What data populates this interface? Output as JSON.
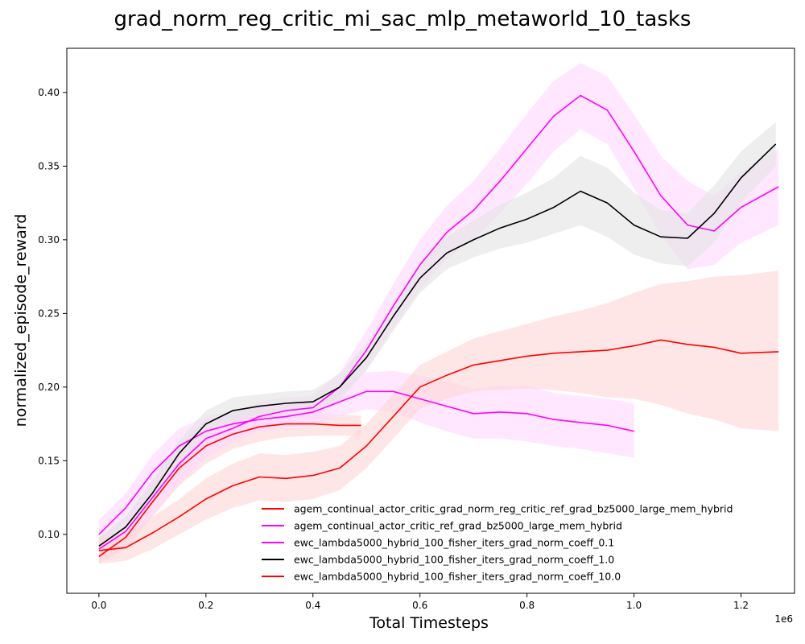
{
  "chart_data": {
    "type": "line",
    "title": "grad_norm_reg_critic_mi_sac_mlp_metaworld_10_tasks",
    "xlabel": "Total Timesteps",
    "ylabel": "normalized_episode_reward",
    "x_offset_label": "1e6",
    "xlim": [
      -0.06,
      1.3
    ],
    "ylim": [
      0.06,
      0.43
    ],
    "x_ticks": [
      0.0,
      0.2,
      0.4,
      0.6,
      0.8,
      1.0,
      1.2
    ],
    "x_tick_labels": [
      "0.0",
      "0.2",
      "0.4",
      "0.6",
      "0.8",
      "1.0",
      "1.2"
    ],
    "y_ticks": [
      0.1,
      0.15,
      0.2,
      0.25,
      0.3,
      0.35,
      0.4
    ],
    "y_tick_labels": [
      "0.10",
      "0.15",
      "0.20",
      "0.25",
      "0.30",
      "0.35",
      "0.40"
    ],
    "grid": false,
    "legend_position": "lower-right",
    "series": [
      {
        "name": "agem_continual_actor_critic_grad_norm_reg_critic_ref_grad_bz5000_large_mem_hybrid",
        "color": "#ff0000",
        "band_color": "#ffd6d6",
        "x": [
          0.0,
          0.05,
          0.1,
          0.15,
          0.2,
          0.25,
          0.3,
          0.35,
          0.4,
          0.45,
          0.49
        ],
        "y": [
          0.085,
          0.098,
          0.122,
          0.145,
          0.16,
          0.168,
          0.173,
          0.175,
          0.175,
          0.174,
          0.174
        ],
        "lower": [
          0.08,
          0.09,
          0.112,
          0.133,
          0.148,
          0.158,
          0.163,
          0.166,
          0.167,
          0.167,
          0.167
        ],
        "upper": [
          0.09,
          0.106,
          0.132,
          0.157,
          0.172,
          0.178,
          0.183,
          0.184,
          0.183,
          0.181,
          0.181
        ]
      },
      {
        "name": "agem_continual_actor_critic_ref_grad_bz5000_large_mem_hybrid",
        "color": "#ff00ff",
        "band_color": "#ffd9ff",
        "x": [
          0.0,
          0.05,
          0.1,
          0.15,
          0.2,
          0.25,
          0.3,
          0.35,
          0.4,
          0.45,
          0.5,
          0.55,
          0.6,
          0.65,
          0.7,
          0.75,
          0.8,
          0.85,
          0.9,
          0.95,
          1.0
        ],
        "y": [
          0.1,
          0.118,
          0.142,
          0.16,
          0.17,
          0.175,
          0.178,
          0.18,
          0.183,
          0.19,
          0.197,
          0.197,
          0.192,
          0.187,
          0.182,
          0.183,
          0.182,
          0.178,
          0.176,
          0.174,
          0.17
        ],
        "lower": [
          0.092,
          0.108,
          0.13,
          0.148,
          0.16,
          0.166,
          0.17,
          0.172,
          0.175,
          0.18,
          0.185,
          0.183,
          0.176,
          0.17,
          0.165,
          0.165,
          0.163,
          0.16,
          0.158,
          0.155,
          0.152
        ],
        "upper": [
          0.11,
          0.128,
          0.154,
          0.172,
          0.18,
          0.184,
          0.186,
          0.188,
          0.191,
          0.2,
          0.21,
          0.211,
          0.208,
          0.204,
          0.199,
          0.201,
          0.201,
          0.196,
          0.194,
          0.192,
          0.189
        ]
      },
      {
        "name": "ewc_lambda5000_hybrid_100_fisher_iters_grad_norm_coeff_0.1",
        "color": "#ff00ff",
        "band_color": "#ffd9ff",
        "x": [
          0.0,
          0.05,
          0.1,
          0.15,
          0.2,
          0.25,
          0.3,
          0.35,
          0.4,
          0.45,
          0.5,
          0.55,
          0.6,
          0.65,
          0.7,
          0.75,
          0.8,
          0.85,
          0.9,
          0.95,
          1.0,
          1.05,
          1.1,
          1.15,
          1.2,
          1.27
        ],
        "y": [
          0.09,
          0.102,
          0.125,
          0.148,
          0.165,
          0.172,
          0.18,
          0.184,
          0.186,
          0.2,
          0.225,
          0.255,
          0.283,
          0.305,
          0.32,
          0.34,
          0.362,
          0.384,
          0.398,
          0.388,
          0.36,
          0.33,
          0.31,
          0.306,
          0.322,
          0.336
        ],
        "lower": [
          0.082,
          0.092,
          0.112,
          0.134,
          0.152,
          0.162,
          0.17,
          0.175,
          0.178,
          0.19,
          0.212,
          0.24,
          0.266,
          0.287,
          0.3,
          0.318,
          0.338,
          0.36,
          0.375,
          0.365,
          0.335,
          0.303,
          0.28,
          0.283,
          0.298,
          0.31
        ],
        "upper": [
          0.098,
          0.112,
          0.138,
          0.162,
          0.178,
          0.182,
          0.19,
          0.193,
          0.194,
          0.21,
          0.238,
          0.27,
          0.3,
          0.323,
          0.34,
          0.362,
          0.386,
          0.408,
          0.42,
          0.411,
          0.385,
          0.357,
          0.34,
          0.33,
          0.346,
          0.362
        ]
      },
      {
        "name": "ewc_lambda5000_hybrid_100_fisher_iters_grad_norm_coeff_1.0",
        "color": "#000000",
        "band_color": "#e2e2e2",
        "x": [
          0.0,
          0.05,
          0.1,
          0.15,
          0.2,
          0.25,
          0.3,
          0.35,
          0.4,
          0.45,
          0.5,
          0.55,
          0.6,
          0.65,
          0.7,
          0.75,
          0.8,
          0.85,
          0.9,
          0.95,
          1.0,
          1.05,
          1.1,
          1.15,
          1.2,
          1.265
        ],
        "y": [
          0.092,
          0.105,
          0.128,
          0.155,
          0.175,
          0.184,
          0.187,
          0.189,
          0.19,
          0.2,
          0.22,
          0.248,
          0.274,
          0.291,
          0.3,
          0.308,
          0.314,
          0.322,
          0.333,
          0.325,
          0.31,
          0.302,
          0.301,
          0.318,
          0.342,
          0.365
        ],
        "lower": [
          0.086,
          0.098,
          0.12,
          0.146,
          0.166,
          0.176,
          0.18,
          0.182,
          0.183,
          0.192,
          0.211,
          0.238,
          0.264,
          0.28,
          0.288,
          0.294,
          0.298,
          0.304,
          0.31,
          0.302,
          0.29,
          0.284,
          0.282,
          0.298,
          0.325,
          0.35
        ],
        "upper": [
          0.098,
          0.112,
          0.136,
          0.164,
          0.184,
          0.193,
          0.195,
          0.197,
          0.198,
          0.209,
          0.23,
          0.258,
          0.285,
          0.302,
          0.313,
          0.324,
          0.332,
          0.342,
          0.357,
          0.349,
          0.332,
          0.32,
          0.318,
          0.337,
          0.36,
          0.38
        ]
      },
      {
        "name": "ewc_lambda5000_hybrid_100_fisher_iters_grad_norm_coeff_10.0",
        "color": "#ff0000",
        "band_color": "#ffd6d6",
        "x": [
          0.0,
          0.05,
          0.1,
          0.15,
          0.2,
          0.25,
          0.3,
          0.35,
          0.4,
          0.45,
          0.5,
          0.55,
          0.6,
          0.65,
          0.7,
          0.75,
          0.8,
          0.85,
          0.9,
          0.95,
          1.0,
          1.05,
          1.1,
          1.15,
          1.2,
          1.27
        ],
        "y": [
          0.089,
          0.091,
          0.101,
          0.112,
          0.124,
          0.133,
          0.139,
          0.138,
          0.14,
          0.145,
          0.16,
          0.18,
          0.2,
          0.208,
          0.215,
          0.218,
          0.221,
          0.223,
          0.224,
          0.225,
          0.228,
          0.232,
          0.229,
          0.227,
          0.223,
          0.224
        ],
        "lower": [
          0.08,
          0.082,
          0.09,
          0.1,
          0.11,
          0.118,
          0.123,
          0.122,
          0.124,
          0.13,
          0.145,
          0.165,
          0.185,
          0.192,
          0.197,
          0.198,
          0.199,
          0.198,
          0.196,
          0.193,
          0.192,
          0.188,
          0.182,
          0.178,
          0.172,
          0.17
        ],
        "upper": [
          0.098,
          0.1,
          0.112,
          0.124,
          0.138,
          0.148,
          0.155,
          0.154,
          0.156,
          0.16,
          0.175,
          0.195,
          0.215,
          0.224,
          0.233,
          0.238,
          0.243,
          0.248,
          0.252,
          0.257,
          0.264,
          0.27,
          0.272,
          0.275,
          0.276,
          0.279
        ]
      }
    ]
  }
}
